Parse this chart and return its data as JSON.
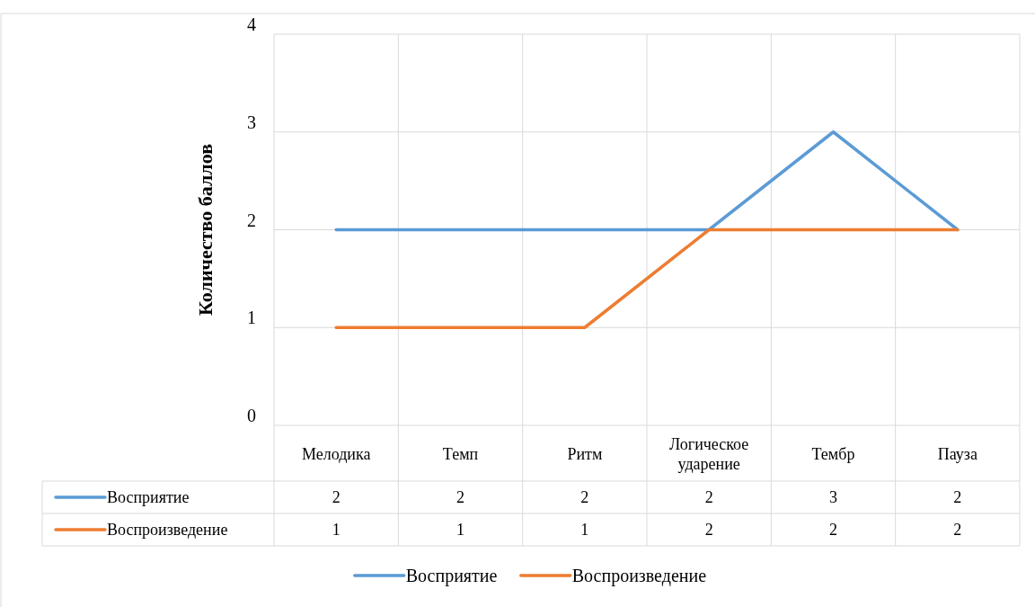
{
  "chart_data": {
    "type": "line",
    "ylabel": "Количество баллов",
    "categories": [
      "Мелодика",
      "Темп",
      "Ритм",
      "Логическое ударение",
      "Тембр",
      "Пауза"
    ],
    "series": [
      {
        "name": "Восприятие",
        "color": "#5b9bd5",
        "values": [
          2,
          2,
          2,
          2,
          3,
          2
        ]
      },
      {
        "name": "Воспроизведение",
        "color": "#ed7d31",
        "values": [
          1,
          1,
          1,
          2,
          2,
          2
        ]
      }
    ],
    "ylim": [
      0,
      4
    ],
    "yticks": [
      0,
      1,
      2,
      3,
      4
    ],
    "grid": true,
    "legend": "bottom",
    "data_labels": true,
    "marker": "none",
    "line_style": "solid"
  }
}
